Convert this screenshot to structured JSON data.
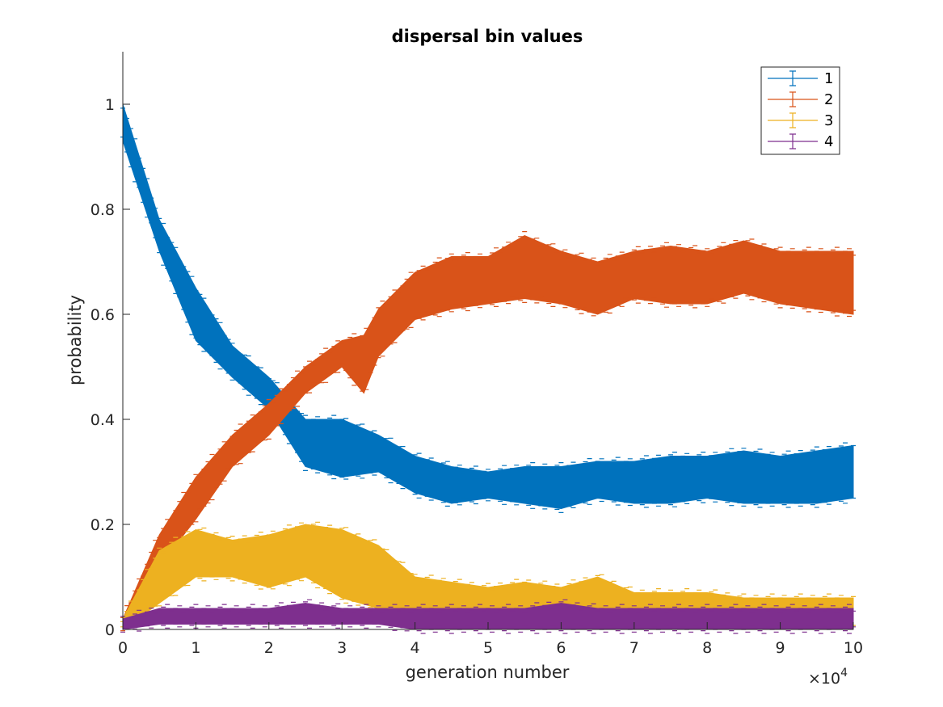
{
  "chart_data": {
    "type": "line",
    "title": "dispersal bin values",
    "xlabel": "generation number",
    "ylabel": "probability",
    "x_exponent_label": "×10",
    "x_exponent_power": "4",
    "xlim": [
      0,
      10
    ],
    "ylim": [
      0,
      1.1
    ],
    "x_ticks": [
      0,
      1,
      2,
      3,
      4,
      5,
      6,
      7,
      8,
      9,
      10
    ],
    "x_tick_labels": [
      "0",
      "1",
      "2",
      "3",
      "4",
      "5",
      "6",
      "7",
      "8",
      "9",
      "10"
    ],
    "y_ticks": [
      0,
      0.2,
      0.4,
      0.6,
      0.8,
      1
    ],
    "y_tick_labels": [
      "0",
      "0.2",
      "0.4",
      "0.6",
      "0.8",
      "1"
    ],
    "grid": false,
    "legend_position": "top-right",
    "series": [
      {
        "name": "1",
        "color": "#0072BD",
        "x": [
          0,
          0.5,
          1,
          1.5,
          2,
          2.5,
          3,
          3.5,
          4,
          4.5,
          5,
          5.5,
          6,
          6.5,
          7,
          7.5,
          8,
          8.5,
          9,
          9.5,
          10
        ],
        "lower": [
          0.93,
          0.72,
          0.55,
          0.48,
          0.42,
          0.31,
          0.29,
          0.3,
          0.26,
          0.24,
          0.25,
          0.24,
          0.23,
          0.25,
          0.24,
          0.24,
          0.25,
          0.24,
          0.24,
          0.24,
          0.25
        ],
        "upper": [
          1.0,
          0.78,
          0.65,
          0.54,
          0.48,
          0.4,
          0.4,
          0.37,
          0.33,
          0.31,
          0.3,
          0.31,
          0.31,
          0.32,
          0.32,
          0.33,
          0.33,
          0.34,
          0.33,
          0.34,
          0.35
        ]
      },
      {
        "name": "2",
        "color": "#D95319",
        "x": [
          0,
          0.5,
          1,
          1.5,
          2,
          2.5,
          3,
          3.3,
          3.5,
          4,
          4.5,
          5,
          5.5,
          6,
          6.5,
          7,
          7.5,
          8,
          8.5,
          9,
          9.5,
          10
        ],
        "lower": [
          0.0,
          0.12,
          0.21,
          0.31,
          0.37,
          0.45,
          0.5,
          0.45,
          0.52,
          0.59,
          0.61,
          0.62,
          0.63,
          0.62,
          0.6,
          0.63,
          0.62,
          0.62,
          0.64,
          0.62,
          0.61,
          0.6
        ],
        "upper": [
          0.02,
          0.18,
          0.29,
          0.37,
          0.43,
          0.5,
          0.55,
          0.56,
          0.61,
          0.68,
          0.71,
          0.71,
          0.75,
          0.72,
          0.7,
          0.72,
          0.73,
          0.72,
          0.74,
          0.72,
          0.72,
          0.72
        ]
      },
      {
        "name": "3",
        "color": "#EDB120",
        "x": [
          0,
          0.5,
          1,
          1.5,
          2,
          2.5,
          3,
          3.5,
          4,
          4.5,
          5,
          5.5,
          6,
          6.5,
          7,
          7.5,
          8,
          8.5,
          9,
          9.5,
          10
        ],
        "lower": [
          0.0,
          0.05,
          0.1,
          0.1,
          0.08,
          0.1,
          0.06,
          0.04,
          0.03,
          0.02,
          0.02,
          0.02,
          0.02,
          0.02,
          0.02,
          0.02,
          0.01,
          0.01,
          0.01,
          0.01,
          0.01
        ],
        "upper": [
          0.02,
          0.15,
          0.19,
          0.17,
          0.18,
          0.2,
          0.19,
          0.16,
          0.1,
          0.09,
          0.08,
          0.09,
          0.08,
          0.1,
          0.07,
          0.07,
          0.07,
          0.06,
          0.06,
          0.06,
          0.06
        ]
      },
      {
        "name": "4",
        "color": "#7E2F8E",
        "x": [
          0,
          0.5,
          1,
          1.5,
          2,
          2.5,
          3,
          3.5,
          4,
          4.5,
          5,
          5.5,
          6,
          6.5,
          7,
          7.5,
          8,
          8.5,
          9,
          9.5,
          10
        ],
        "lower": [
          0.0,
          0.01,
          0.01,
          0.01,
          0.01,
          0.01,
          0.01,
          0.01,
          0.0,
          0.0,
          0.0,
          0.0,
          0.0,
          0.0,
          0.0,
          0.0,
          0.0,
          0.0,
          0.0,
          0.0,
          0.0
        ],
        "upper": [
          0.02,
          0.04,
          0.04,
          0.04,
          0.04,
          0.05,
          0.04,
          0.04,
          0.04,
          0.04,
          0.04,
          0.04,
          0.05,
          0.04,
          0.04,
          0.04,
          0.04,
          0.04,
          0.04,
          0.04,
          0.04
        ]
      }
    ]
  }
}
